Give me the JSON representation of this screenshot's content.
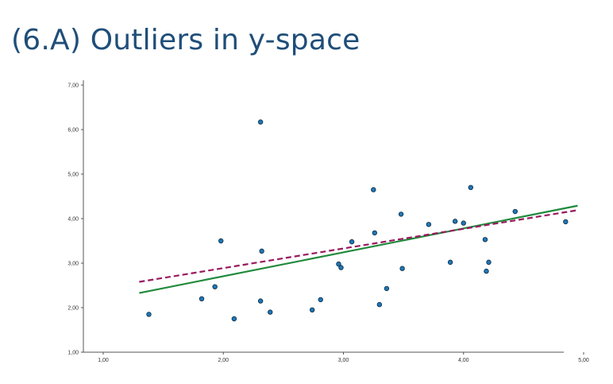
{
  "slide": {
    "title": "(6.A) Outliers in y-space"
  },
  "colors": {
    "title": "#1f4e79",
    "points_fill": "#1f77b4",
    "points_stroke": "#0b2a45",
    "fit_solid": "#1f8a3c",
    "fit_dashed": "#99195e",
    "axis": "#555555"
  },
  "chart_data": {
    "type": "scatter",
    "title": "",
    "xlabel": "",
    "ylabel": "",
    "xlim": [
      1.0,
      5.0
    ],
    "ylim": [
      1.0,
      7.0
    ],
    "grid": false,
    "x_ticks": [
      "1,00",
      "2,00",
      "3,00",
      "4,00",
      "5,00"
    ],
    "y_ticks": [
      "1,00",
      "2,00",
      "3,00",
      "4,00",
      "5,00",
      "6,00",
      "7,00"
    ],
    "points": [
      [
        1.38,
        1.85
      ],
      [
        1.82,
        2.2
      ],
      [
        1.93,
        2.47
      ],
      [
        1.98,
        3.5
      ],
      [
        2.09,
        1.75
      ],
      [
        2.31,
        2.15
      ],
      [
        2.32,
        3.27
      ],
      [
        2.31,
        6.17
      ],
      [
        2.39,
        1.9
      ],
      [
        2.74,
        1.95
      ],
      [
        2.81,
        2.18
      ],
      [
        2.96,
        2.98
      ],
      [
        2.98,
        2.9
      ],
      [
        3.07,
        3.48
      ],
      [
        3.25,
        4.65
      ],
      [
        3.26,
        3.68
      ],
      [
        3.3,
        2.07
      ],
      [
        3.36,
        2.43
      ],
      [
        3.48,
        4.1
      ],
      [
        3.49,
        2.88
      ],
      [
        3.71,
        3.87
      ],
      [
        3.89,
        3.02
      ],
      [
        3.93,
        3.94
      ],
      [
        4.0,
        3.9
      ],
      [
        4.06,
        4.7
      ],
      [
        4.18,
        3.53
      ],
      [
        4.19,
        2.82
      ],
      [
        4.21,
        3.02
      ],
      [
        4.43,
        4.16
      ],
      [
        4.85,
        3.93
      ]
    ],
    "lines": [
      {
        "style": "solid",
        "x": [
          1.3,
          4.95
        ],
        "y": [
          2.33,
          4.29
        ]
      },
      {
        "style": "dashed",
        "x": [
          1.3,
          4.95
        ],
        "y": [
          2.58,
          4.19
        ]
      }
    ]
  }
}
